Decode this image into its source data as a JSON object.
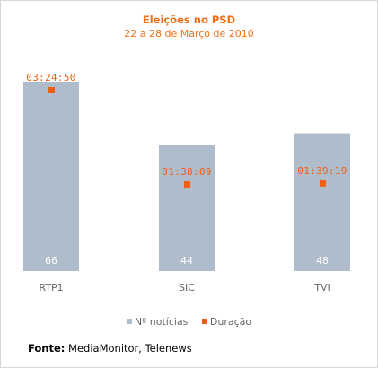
{
  "chart_data": {
    "type": "bar",
    "title": "Eleições no PSD",
    "subtitle": "22 a 28 de Março de 2010",
    "categories": [
      "RTP1",
      "SIC",
      "TVI"
    ],
    "series": [
      {
        "name": "Nº notícias",
        "values": [
          66,
          44,
          48
        ],
        "color": "#aebccb"
      },
      {
        "name": "Duração",
        "values": [
          "03:24:50",
          "01:38:09",
          "01:39:19"
        ],
        "seconds": [
          12290,
          5889,
          5959
        ],
        "color": "#f06010"
      }
    ],
    "legend_position": "bottom",
    "grid": false
  },
  "source": {
    "label": "Fonte:",
    "text": "MediaMonitor, Telenews"
  }
}
